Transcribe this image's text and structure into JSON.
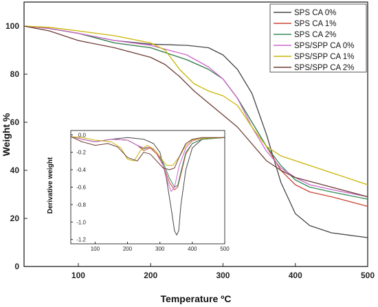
{
  "chart_data": [
    {
      "type": "line",
      "panel": "main",
      "xlabel": "Temperature ºC",
      "ylabel": "Weight %",
      "xlim": [
        25,
        500
      ],
      "ylim": [
        0,
        110
      ],
      "xticks": [
        100,
        200,
        300,
        400,
        500
      ],
      "yticks": [
        0,
        20,
        40,
        60,
        80,
        100
      ],
      "xtick_labels": [
        "100",
        "200",
        "300",
        "400",
        "500"
      ],
      "ytick_labels": [
        "0",
        "20",
        "40",
        "60",
        "80",
        "100"
      ],
      "legend": "top-right",
      "grid": false,
      "series": [
        {
          "name": "SPS CA 0%",
          "color": "#444444",
          "x": [
            25,
            60,
            100,
            150,
            200,
            250,
            280,
            300,
            320,
            340,
            360,
            380,
            400,
            420,
            450,
            500
          ],
          "y": [
            100,
            99,
            97,
            94,
            92.5,
            92,
            91,
            88,
            82,
            72,
            55,
            35,
            22,
            17,
            14,
            12
          ]
        },
        {
          "name": "SPS CA 1%",
          "color": "#cc4433",
          "x": [
            25,
            60,
            100,
            150,
            200,
            250,
            280,
            300,
            320,
            340,
            360,
            380,
            400,
            420,
            450,
            500
          ],
          "y": [
            100,
            99,
            97,
            93,
            91,
            86,
            82,
            78,
            70,
            60,
            50,
            40,
            34,
            31,
            29,
            25
          ]
        },
        {
          "name": "SPS CA 2%",
          "color": "#2e8b57",
          "x": [
            25,
            60,
            100,
            150,
            200,
            250,
            280,
            300,
            320,
            340,
            360,
            380,
            400,
            420,
            450,
            500
          ],
          "y": [
            100,
            99,
            97,
            93,
            91,
            86,
            82,
            78,
            70,
            60,
            50,
            42,
            36,
            33,
            31,
            28
          ]
        },
        {
          "name": "SPS/SPP CA 0%",
          "color": "#cc66cc",
          "x": [
            25,
            60,
            100,
            150,
            200,
            250,
            280,
            300,
            320,
            340,
            360,
            380,
            400,
            420,
            450,
            500
          ],
          "y": [
            100,
            99,
            97,
            94,
            92,
            88,
            83,
            78,
            70,
            58,
            48,
            41,
            37,
            34,
            32,
            29
          ]
        },
        {
          "name": "SPS/SPP CA 1%",
          "color": "#c8b400",
          "x": [
            25,
            60,
            100,
            150,
            200,
            220,
            240,
            260,
            280,
            300,
            320,
            340,
            360,
            380,
            400,
            450,
            500
          ],
          "y": [
            100,
            99.5,
            98,
            96,
            93,
            90,
            82,
            76,
            73,
            71,
            67,
            58,
            50,
            46,
            44,
            39,
            34
          ]
        },
        {
          "name": "SPS/SPP CA 2%",
          "color": "#6b3a33",
          "x": [
            25,
            60,
            100,
            150,
            200,
            220,
            240,
            260,
            280,
            300,
            320,
            340,
            360,
            380,
            400,
            450,
            500
          ],
          "y": [
            100,
            98,
            94,
            91,
            87,
            84,
            79,
            73,
            68,
            63,
            58,
            51,
            44,
            40,
            37,
            33,
            29
          ]
        }
      ]
    },
    {
      "type": "line",
      "panel": "inset",
      "xlabel": "",
      "ylabel": "Derivative weight",
      "xlim": [
        25,
        500
      ],
      "ylim": [
        -1.25,
        0.05
      ],
      "xticks": [
        100,
        200,
        300,
        400,
        500
      ],
      "yticks": [
        0.0,
        -0.2,
        -0.4,
        -0.6,
        -0.8,
        -1.0,
        -1.2
      ],
      "xtick_labels": [
        "100",
        "200",
        "300",
        "400",
        "500"
      ],
      "ytick_labels": [
        "0.0",
        "-0.2",
        "-0.4",
        "-0.6",
        "-0.8",
        "-1.0",
        "-1.2"
      ],
      "grid": false,
      "series": [
        {
          "name": "SPS CA 0%",
          "color": "#444444",
          "x": [
            25,
            60,
            100,
            150,
            200,
            250,
            280,
            300,
            320,
            335,
            345,
            352,
            358,
            365,
            380,
            400,
            430,
            500
          ],
          "y": [
            -0.02,
            -0.05,
            -0.08,
            -0.05,
            -0.03,
            -0.05,
            -0.1,
            -0.2,
            -0.5,
            -0.85,
            -1.1,
            -1.15,
            -1.1,
            -0.8,
            -0.4,
            -0.15,
            -0.05,
            -0.03
          ]
        },
        {
          "name": "SPS CA 1%",
          "color": "#cc4433",
          "x": [
            25,
            60,
            100,
            150,
            200,
            230,
            250,
            270,
            290,
            310,
            330,
            345,
            355,
            365,
            380,
            400,
            430,
            500
          ],
          "y": [
            -0.02,
            -0.05,
            -0.08,
            -0.05,
            -0.06,
            -0.12,
            -0.18,
            -0.15,
            -0.22,
            -0.35,
            -0.55,
            -0.63,
            -0.6,
            -0.45,
            -0.22,
            -0.1,
            -0.05,
            -0.03
          ]
        },
        {
          "name": "SPS CA 2%",
          "color": "#2e8b57",
          "x": [
            25,
            60,
            100,
            150,
            200,
            230,
            250,
            270,
            290,
            310,
            330,
            345,
            355,
            365,
            380,
            400,
            430,
            500
          ],
          "y": [
            -0.02,
            -0.05,
            -0.08,
            -0.05,
            -0.06,
            -0.12,
            -0.16,
            -0.14,
            -0.2,
            -0.32,
            -0.5,
            -0.6,
            -0.58,
            -0.42,
            -0.2,
            -0.1,
            -0.05,
            -0.03
          ]
        },
        {
          "name": "SPS/SPP CA 0%",
          "color": "#cc66cc",
          "x": [
            25,
            60,
            100,
            150,
            200,
            230,
            250,
            270,
            290,
            310,
            325,
            335,
            345,
            360,
            380,
            400,
            430,
            500
          ],
          "y": [
            -0.02,
            -0.05,
            -0.08,
            -0.05,
            -0.06,
            -0.12,
            -0.15,
            -0.14,
            -0.2,
            -0.35,
            -0.55,
            -0.65,
            -0.6,
            -0.35,
            -0.15,
            -0.07,
            -0.04,
            -0.03
          ]
        },
        {
          "name": "SPS/SPP CA 1%",
          "color": "#c8b400",
          "x": [
            25,
            60,
            100,
            150,
            180,
            200,
            220,
            240,
            260,
            280,
            300,
            320,
            340,
            360,
            380,
            400,
            430,
            500
          ],
          "y": [
            -0.02,
            -0.03,
            -0.06,
            -0.08,
            -0.15,
            -0.28,
            -0.3,
            -0.18,
            -0.12,
            -0.16,
            -0.25,
            -0.35,
            -0.35,
            -0.25,
            -0.12,
            -0.06,
            -0.04,
            -0.03
          ]
        },
        {
          "name": "SPS/SPP CA 2%",
          "color": "#6b3a33",
          "x": [
            25,
            60,
            100,
            140,
            170,
            200,
            230,
            250,
            270,
            290,
            310,
            330,
            345,
            360,
            380,
            400,
            430,
            500
          ],
          "y": [
            -0.02,
            -0.08,
            -0.12,
            -0.1,
            -0.14,
            -0.26,
            -0.3,
            -0.2,
            -0.22,
            -0.3,
            -0.38,
            -0.4,
            -0.38,
            -0.25,
            -0.1,
            -0.05,
            -0.03,
            -0.03
          ]
        }
      ]
    }
  ]
}
